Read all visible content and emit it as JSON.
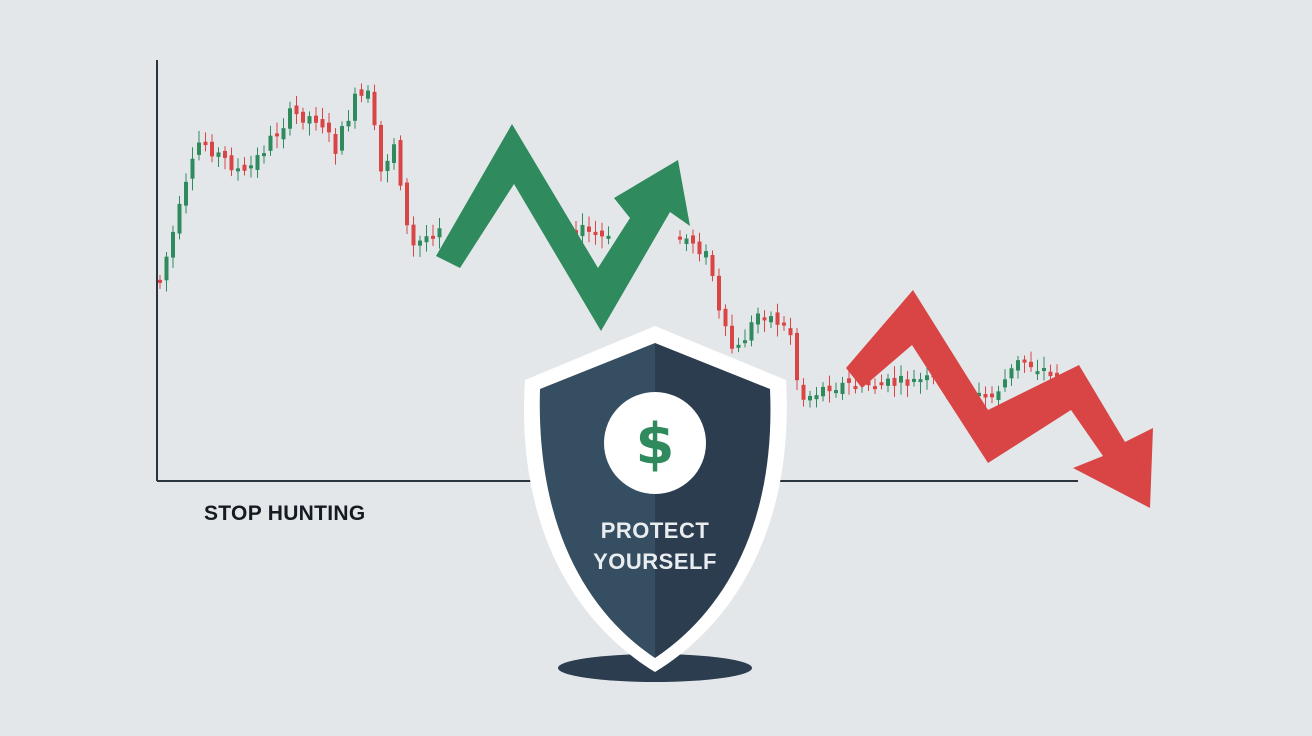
{
  "caption": "STOP HUNTING",
  "shield": {
    "line1": "PROTECT",
    "line2": "YOURSELF",
    "symbol": "$"
  },
  "icons": [
    "candlestick-chart",
    "up-trend-arrow-icon",
    "down-trend-arrow-icon",
    "shield-icon",
    "dollar-coin-icon"
  ],
  "colors": {
    "background": "#e3e7ea",
    "bull": "#2f8a5e",
    "bear": "#d94545",
    "shield_dark": "#2b3d4f",
    "shield_light": "#354e62",
    "axis": "#2b3540"
  }
}
